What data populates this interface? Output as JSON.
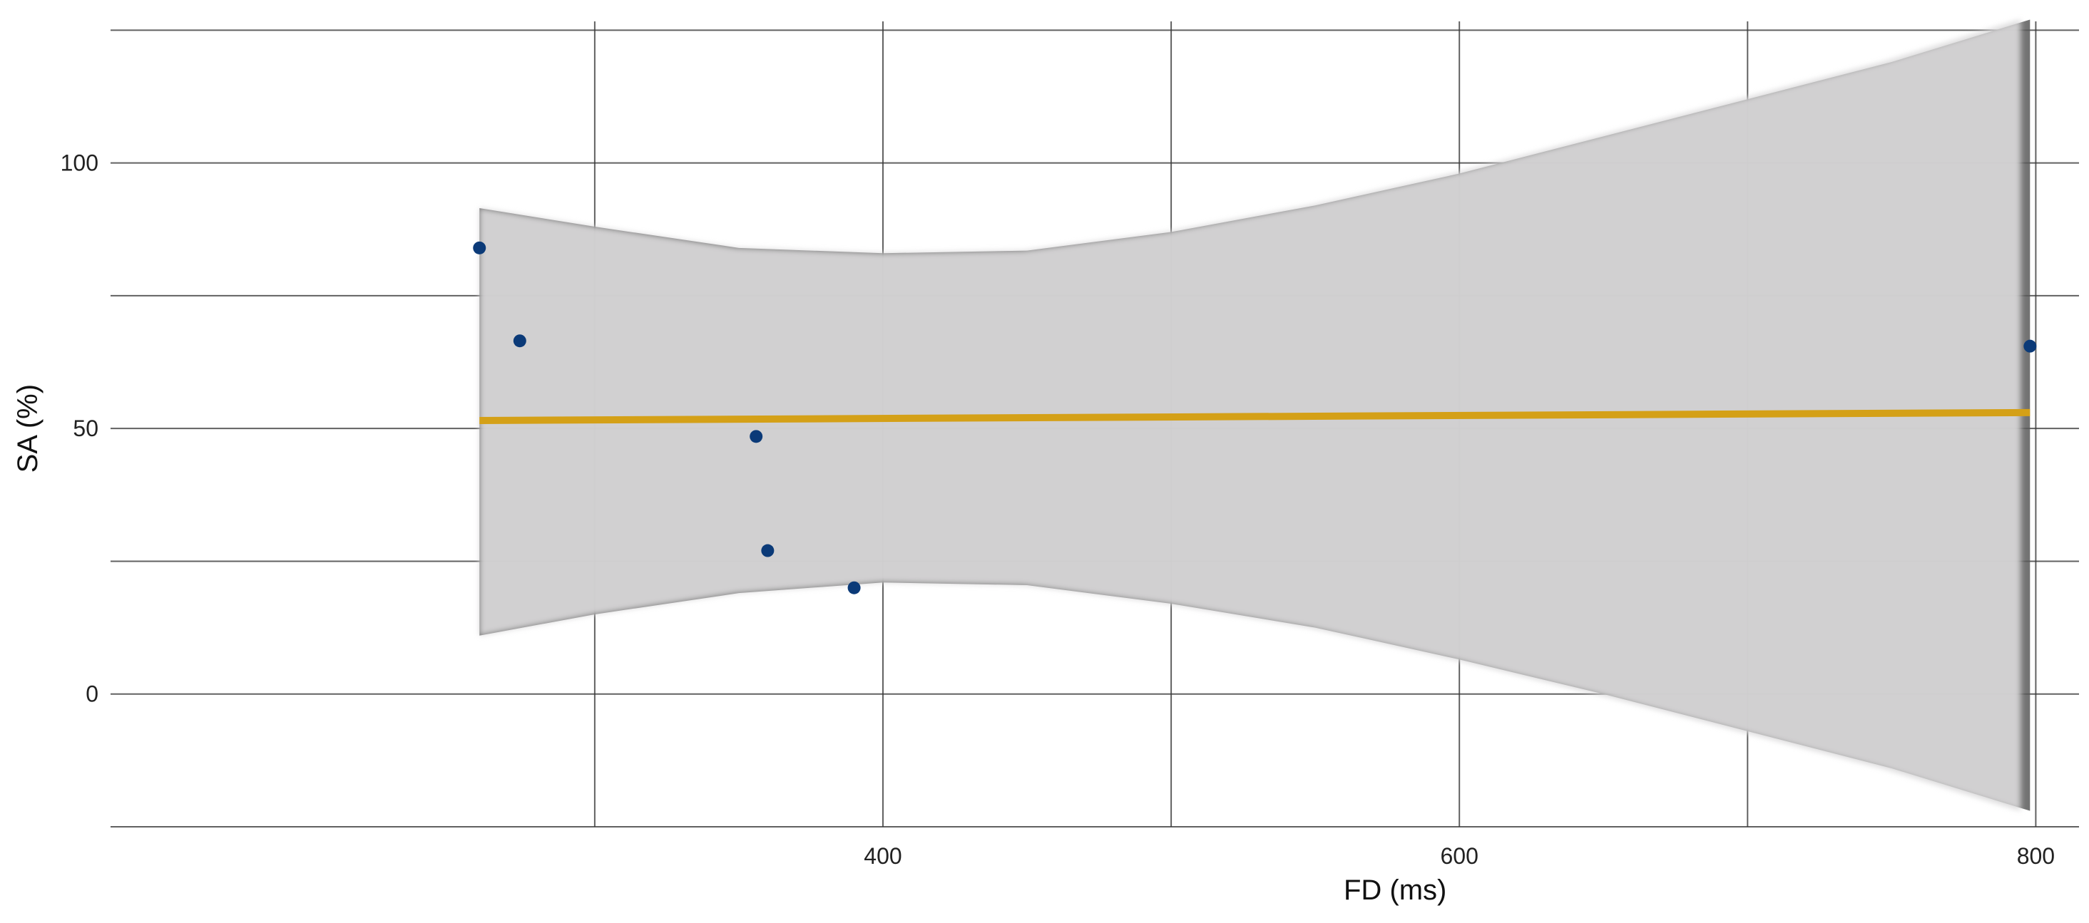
{
  "chart_data": {
    "type": "scatter",
    "title": "",
    "xlabel": "FD (ms)",
    "ylabel": "SA (%)",
    "xlim": [
      132,
      815
    ],
    "ylim": [
      -25,
      128
    ],
    "x_ticks": [
      400,
      600,
      800
    ],
    "y_ticks": [
      0,
      50,
      100
    ],
    "x_minor_gridlines": [
      300,
      500,
      700
    ],
    "y_minor_gridlines": [
      -25,
      25,
      75,
      125
    ],
    "grid": true,
    "points": [
      {
        "x": 260,
        "y": 84
      },
      {
        "x": 274,
        "y": 66.5
      },
      {
        "x": 356,
        "y": 48.5
      },
      {
        "x": 360,
        "y": 27
      },
      {
        "x": 390,
        "y": 20
      },
      {
        "x": 798,
        "y": 65.5
      }
    ],
    "fit_line": {
      "x": [
        260,
        798
      ],
      "y": [
        51.5,
        53
      ]
    },
    "confidence_band": {
      "x": [
        260,
        300,
        350,
        400,
        450,
        500,
        550,
        600,
        650,
        700,
        750,
        798
      ],
      "upper": [
        91.5,
        88,
        84,
        83,
        83.5,
        87,
        92,
        98,
        105,
        112,
        119,
        127
      ],
      "lower": [
        11,
        15,
        19,
        21,
        20.5,
        17,
        12.5,
        6.5,
        0,
        -7,
        -14,
        -22
      ]
    },
    "colors": {
      "points": "#0b3a78",
      "fit_line": "#d4a017",
      "band_fill": "#d9d8d9",
      "band_edge": "#5a5a5a",
      "grid": "#3a3a3a"
    }
  }
}
